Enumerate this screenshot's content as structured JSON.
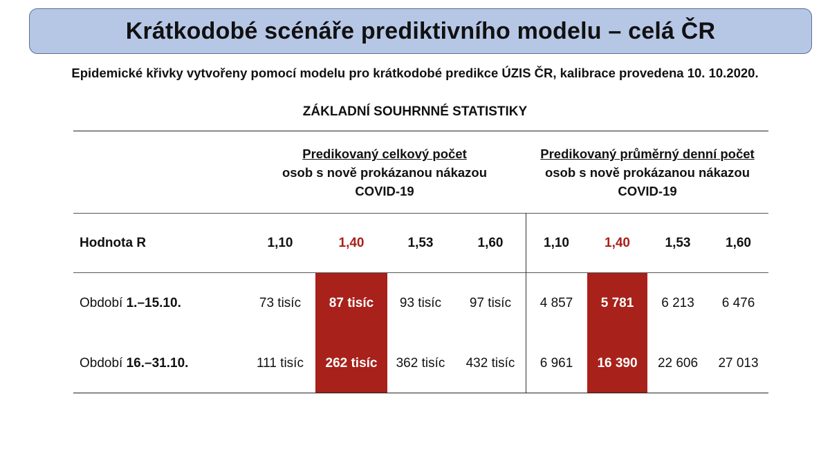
{
  "title": "Krátkodobé scénáře prediktivního modelu – celá ČR",
  "subtitle": "Epidemické křivky vytvořeny pomocí modelu pro krátkodobé predikce ÚZIS ČR, kalibrace provedena 10. 10.2020.",
  "section_title": "ZÁKLADNÍ SOUHRNNÉ STATISTIKY",
  "table": {
    "group1": {
      "line1": "Predikovaný celkový počet",
      "line2": "osob s nově prokázanou nákazou",
      "line3": "COVID-19"
    },
    "group2": {
      "line1": "Predikovaný průměrný denní počet",
      "line2": "osob s nově prokázanou nákazou",
      "line3": "COVID-19"
    },
    "r_label": "Hodnota R",
    "r_values": [
      "1,10",
      "1,40",
      "1,53",
      "1,60",
      "1,10",
      "1,40",
      "1,53",
      "1,60"
    ],
    "rows": [
      {
        "label_prefix": "Období ",
        "label_bold": "1.–15.10.",
        "values": [
          "73 tisíc",
          "87 tisíc",
          "93 tisíc",
          "97 tisíc",
          "4 857",
          "5 781",
          "6 213",
          "6 476"
        ]
      },
      {
        "label_prefix": "Období ",
        "label_bold": "16.–31.10.",
        "values": [
          "111 tisíc",
          "262 tisíc",
          "362 tisíc",
          "432 tisíc",
          "6 961",
          "16 390",
          "22 606",
          "27 013"
        ]
      }
    ],
    "highlight_color": "#a8211a"
  }
}
